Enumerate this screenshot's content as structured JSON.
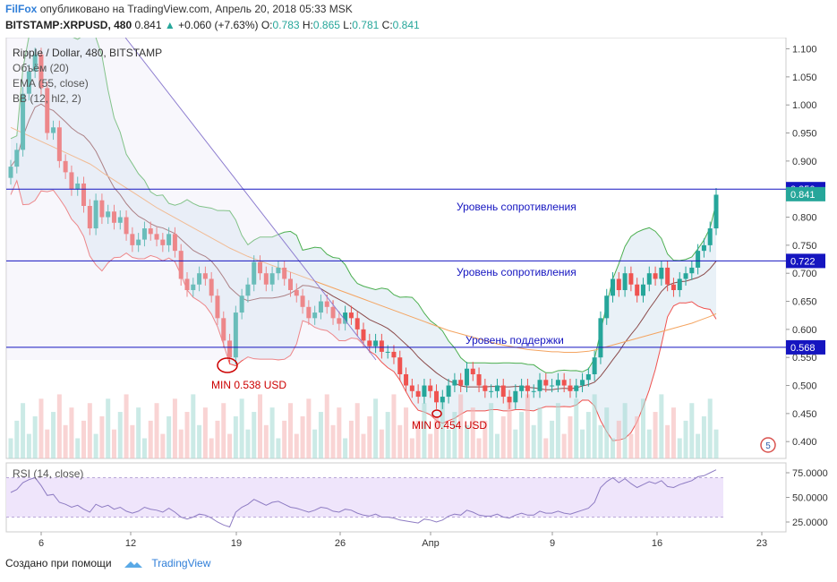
{
  "header": {
    "author": "FilFox",
    "published": "опубликовано на TradingView.com, Апрель 20, 2018 05:33 MSK",
    "symbol": "BITSTAMP:XRPUSD, 480",
    "last": "0.841",
    "change": "+0.060 (+7.63%)",
    "ohlc": {
      "o_label": "O:",
      "o": "0.783",
      "h_label": "H:",
      "h": "0.865",
      "l_label": "L:",
      "l": "0.781",
      "c_label": "C:",
      "c": "0.841"
    }
  },
  "legend": {
    "title": "Ripple / Dollar, 480, BITSTAMP",
    "volume": "Объём (20)",
    "ema": "EMA (55, close)",
    "bb": "BB (12, hl2, 2)",
    "rsi": "RSI (14, close)"
  },
  "annotations": {
    "resistance_1": "Уровень сопротивления",
    "resistance_2": "Уровень сопротивления",
    "support": "Уровень поддержки",
    "min_1": "MIN 0.538 USD",
    "min_2": "MIN 0.454 USD"
  },
  "levels": [
    {
      "label": "0.850",
      "value": 0.85,
      "color": "#1515c0"
    },
    {
      "label": "0.722",
      "value": 0.722,
      "color": "#1515c0"
    },
    {
      "label": "0.568",
      "value": 0.568,
      "color": "#1515c0"
    }
  ],
  "price_badge": {
    "label": "0.841",
    "value": 0.841,
    "color": "#26a69a"
  },
  "colors": {
    "up": "#26a69a",
    "down": "#ef5350",
    "bb": "#4caf50",
    "ema": "#f4a460",
    "rsi": "#8e7cc3",
    "level": "#1515c0",
    "trend": "#7b68c8"
  },
  "event_badge": "5",
  "footer": {
    "created_with": "Создано при помощи",
    "brand": "TradingView"
  },
  "chart_data": [
    {
      "type": "candlestick",
      "title": "Ripple / Dollar, 480, BITSTAMP",
      "x_ticks": [
        "6",
        "12",
        "19",
        "26",
        "Апр",
        "9",
        "16",
        "23"
      ],
      "y_ticks": [
        "1.100",
        "1.050",
        "1.000",
        "0.950",
        "0.900",
        "0.850",
        "0.800",
        "0.750",
        "0.700",
        "0.650",
        "0.600",
        "0.550",
        "0.500",
        "0.450",
        "0.400"
      ],
      "ylim": [
        0.37,
        1.12
      ],
      "close": [
        0.89,
        0.92,
        1.02,
        1.06,
        1.09,
        1.03,
        0.95,
        0.96,
        0.9,
        0.88,
        0.85,
        0.86,
        0.82,
        0.78,
        0.83,
        0.8,
        0.81,
        0.79,
        0.8,
        0.77,
        0.75,
        0.76,
        0.78,
        0.77,
        0.76,
        0.75,
        0.77,
        0.74,
        0.69,
        0.67,
        0.68,
        0.7,
        0.69,
        0.66,
        0.62,
        0.58,
        0.55,
        0.63,
        0.66,
        0.68,
        0.72,
        0.7,
        0.68,
        0.7,
        0.71,
        0.69,
        0.67,
        0.66,
        0.64,
        0.62,
        0.63,
        0.65,
        0.64,
        0.62,
        0.61,
        0.63,
        0.62,
        0.6,
        0.58,
        0.57,
        0.58,
        0.56,
        0.56,
        0.55,
        0.52,
        0.5,
        0.49,
        0.48,
        0.5,
        0.49,
        0.47,
        0.48,
        0.5,
        0.51,
        0.5,
        0.53,
        0.52,
        0.5,
        0.49,
        0.49,
        0.5,
        0.48,
        0.47,
        0.49,
        0.5,
        0.49,
        0.49,
        0.51,
        0.5,
        0.5,
        0.51,
        0.5,
        0.49,
        0.5,
        0.51,
        0.52,
        0.55,
        0.62,
        0.66,
        0.69,
        0.67,
        0.7,
        0.68,
        0.66,
        0.68,
        0.7,
        0.69,
        0.71,
        0.68,
        0.67,
        0.69,
        0.7,
        0.71,
        0.74,
        0.75,
        0.78,
        0.84
      ],
      "ema_55": [
        0.96,
        0.955,
        0.95,
        0.945,
        0.94,
        0.935,
        0.93,
        0.925,
        0.92,
        0.915,
        0.91,
        0.905,
        0.9,
        0.895,
        0.888,
        0.88,
        0.873,
        0.866,
        0.859,
        0.852,
        0.845,
        0.838,
        0.831,
        0.824,
        0.817,
        0.811,
        0.805,
        0.799,
        0.793,
        0.787,
        0.781,
        0.775,
        0.769,
        0.763,
        0.757,
        0.751,
        0.745,
        0.74,
        0.735,
        0.73,
        0.726,
        0.722,
        0.718,
        0.714,
        0.71,
        0.706,
        0.702,
        0.698,
        0.694,
        0.69,
        0.686,
        0.682,
        0.678,
        0.674,
        0.67,
        0.666,
        0.662,
        0.658,
        0.654,
        0.65,
        0.646,
        0.642,
        0.638,
        0.634,
        0.63,
        0.626,
        0.622,
        0.618,
        0.614,
        0.61,
        0.606,
        0.602,
        0.598,
        0.595,
        0.592,
        0.589,
        0.586,
        0.583,
        0.58,
        0.577,
        0.574,
        0.572,
        0.57,
        0.568,
        0.566,
        0.564,
        0.563,
        0.562,
        0.561,
        0.56,
        0.56,
        0.559,
        0.559,
        0.559,
        0.56,
        0.561,
        0.563,
        0.566,
        0.569,
        0.572,
        0.575,
        0.578,
        0.581,
        0.584,
        0.587,
        0.59,
        0.593,
        0.596,
        0.599,
        0.602,
        0.605,
        0.608,
        0.611,
        0.615,
        0.619,
        0.623,
        0.628
      ]
    },
    {
      "type": "line",
      "title": "RSI (14, close)",
      "y_ticks": [
        "75.0000",
        "50.0000",
        "25.0000"
      ],
      "ylim": [
        15,
        85
      ],
      "values": [
        55,
        58,
        65,
        68,
        70,
        62,
        52,
        53,
        45,
        43,
        40,
        42,
        38,
        35,
        43,
        40,
        42,
        38,
        40,
        36,
        34,
        36,
        40,
        38,
        37,
        35,
        39,
        35,
        30,
        28,
        30,
        33,
        32,
        29,
        25,
        22,
        20,
        35,
        40,
        43,
        48,
        45,
        42,
        45,
        46,
        43,
        40,
        39,
        37,
        35,
        37,
        40,
        39,
        36,
        35,
        38,
        37,
        34,
        32,
        31,
        33,
        30,
        30,
        29,
        27,
        26,
        25,
        24,
        28,
        27,
        25,
        27,
        31,
        33,
        32,
        37,
        35,
        32,
        31,
        31,
        33,
        30,
        29,
        32,
        34,
        32,
        32,
        36,
        34,
        34,
        36,
        34,
        33,
        35,
        37,
        39,
        45,
        60,
        66,
        70,
        65,
        69,
        64,
        60,
        63,
        66,
        64,
        67,
        61,
        60,
        63,
        65,
        67,
        71,
        72,
        75,
        78
      ]
    }
  ]
}
